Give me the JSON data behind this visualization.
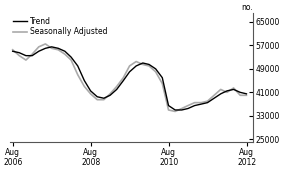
{
  "title": "",
  "ylabel_right": "no.",
  "yticks": [
    25000,
    33000,
    41000,
    49000,
    57000,
    65000
  ],
  "ylim": [
    24000,
    68000
  ],
  "xlim_start": 2006.5,
  "xlim_end": 2012.75,
  "xtick_positions": [
    2006.583,
    2008.583,
    2010.583,
    2012.583
  ],
  "xtick_labels": [
    "Aug\n2006",
    "Aug\n2008",
    "Aug\n2010",
    "Aug\n2012"
  ],
  "legend_entries": [
    "Trend",
    "Seasonally Adjusted"
  ],
  "trend_color": "#000000",
  "seasonal_color": "#aaaaaa",
  "background_color": "#ffffff",
  "trend_lw": 1.0,
  "seasonal_lw": 1.2,
  "trend_data": {
    "x": [
      2006.58,
      2006.75,
      2006.92,
      2007.08,
      2007.25,
      2007.42,
      2007.58,
      2007.75,
      2007.92,
      2008.08,
      2008.25,
      2008.42,
      2008.58,
      2008.75,
      2008.92,
      2009.08,
      2009.25,
      2009.42,
      2009.58,
      2009.75,
      2009.92,
      2010.08,
      2010.25,
      2010.42,
      2010.58,
      2010.75,
      2010.92,
      2011.08,
      2011.25,
      2011.42,
      2011.58,
      2011.75,
      2011.92,
      2012.08,
      2012.25,
      2012.42,
      2012.58
    ],
    "y": [
      55000,
      54500,
      53500,
      53500,
      55000,
      56000,
      56500,
      56000,
      55000,
      53000,
      50000,
      45000,
      41500,
      39500,
      39000,
      40000,
      42000,
      45000,
      48000,
      50000,
      51000,
      50500,
      49000,
      46000,
      36500,
      35000,
      35000,
      35500,
      36500,
      37000,
      37500,
      39000,
      40500,
      41500,
      42000,
      41000,
      40500
    ]
  },
  "seasonal_data": {
    "x": [
      2006.58,
      2006.75,
      2006.92,
      2007.08,
      2007.25,
      2007.42,
      2007.58,
      2007.75,
      2007.92,
      2008.08,
      2008.25,
      2008.42,
      2008.58,
      2008.75,
      2008.92,
      2009.08,
      2009.25,
      2009.42,
      2009.58,
      2009.75,
      2009.92,
      2010.08,
      2010.25,
      2010.42,
      2010.58,
      2010.75,
      2010.92,
      2011.08,
      2011.25,
      2011.42,
      2011.58,
      2011.75,
      2011.92,
      2012.08,
      2012.25,
      2012.42,
      2012.58
    ],
    "y": [
      55500,
      53500,
      52000,
      54000,
      56500,
      57500,
      56000,
      55500,
      54000,
      52000,
      47000,
      43000,
      40500,
      38500,
      38500,
      40500,
      43000,
      46000,
      50000,
      51500,
      50500,
      50000,
      48000,
      44000,
      35000,
      34500,
      35500,
      36500,
      37500,
      37500,
      38000,
      40000,
      42000,
      41000,
      42500,
      40000,
      40000
    ]
  }
}
